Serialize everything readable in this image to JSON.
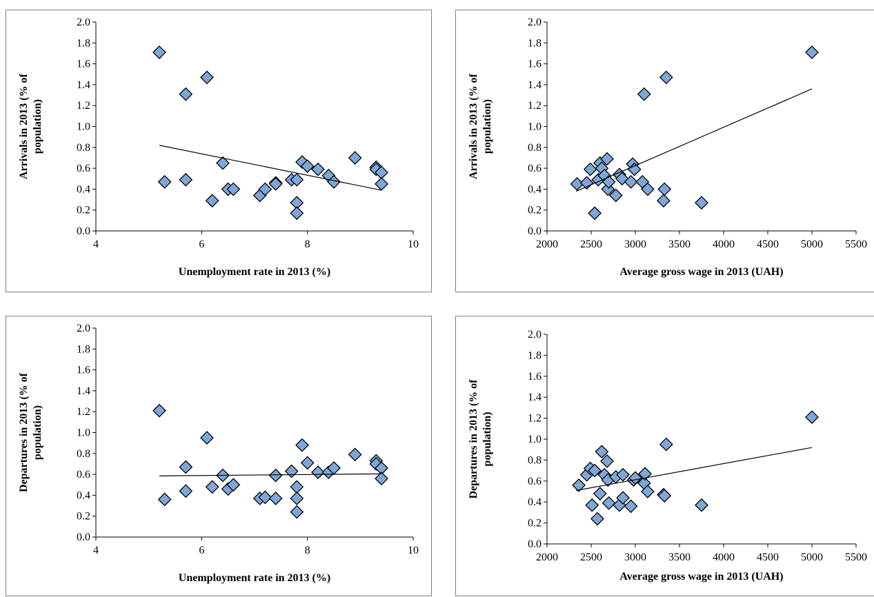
{
  "chart_data": [
    {
      "type": "scatter",
      "xlabel": "Unemployment rate in 2013 (%)",
      "ylabel": [
        "Arrivals in 2013  (% of",
        "population)"
      ],
      "xlim": [
        4,
        10
      ],
      "ylim": [
        0,
        2.0
      ],
      "xticks": [
        "4",
        "6",
        "8",
        "10"
      ],
      "yticks": [
        "0.0",
        "0.2",
        "0.4",
        "0.6",
        "0.8",
        "1.0",
        "1.2",
        "1.4",
        "1.6",
        "1.8",
        "2.0"
      ],
      "trendline": [
        [
          5.2,
          0.82
        ],
        [
          9.4,
          0.39
        ]
      ],
      "points": [
        [
          5.2,
          1.71
        ],
        [
          5.3,
          0.47
        ],
        [
          5.7,
          1.31
        ],
        [
          5.7,
          0.49
        ],
        [
          6.1,
          1.47
        ],
        [
          6.2,
          0.29
        ],
        [
          6.4,
          0.65
        ],
        [
          6.5,
          0.4
        ],
        [
          6.6,
          0.4
        ],
        [
          7.1,
          0.34
        ],
        [
          7.2,
          0.4
        ],
        [
          7.4,
          0.46
        ],
        [
          7.4,
          0.45
        ],
        [
          7.7,
          0.49
        ],
        [
          7.8,
          0.49
        ],
        [
          7.8,
          0.27
        ],
        [
          7.8,
          0.17
        ],
        [
          7.9,
          0.66
        ],
        [
          8.0,
          0.62
        ],
        [
          8.2,
          0.59
        ],
        [
          8.4,
          0.53
        ],
        [
          8.5,
          0.47
        ],
        [
          8.9,
          0.7
        ],
        [
          9.3,
          0.61
        ],
        [
          9.3,
          0.59
        ],
        [
          9.4,
          0.56
        ],
        [
          9.4,
          0.45
        ]
      ]
    },
    {
      "type": "scatter",
      "xlabel": "Average gross wage in 2013 (UAH)",
      "ylabel": [
        "Arrivals in 2013  (% of",
        "population)"
      ],
      "xlim": [
        2000,
        5500
      ],
      "ylim": [
        0,
        2.0
      ],
      "xticks": [
        "2000",
        "2500",
        "3000",
        "3500",
        "4000",
        "4500",
        "5000",
        "5500"
      ],
      "yticks": [
        "0.0",
        "0.2",
        "0.4",
        "0.6",
        "0.8",
        "1.0",
        "1.2",
        "1.4",
        "1.6",
        "1.8",
        "2.0"
      ],
      "trendline": [
        [
          2330,
          0.38
        ],
        [
          5000,
          1.36
        ]
      ],
      "points": [
        [
          2340,
          0.45
        ],
        [
          2450,
          0.46
        ],
        [
          2490,
          0.59
        ],
        [
          2540,
          0.17
        ],
        [
          2580,
          0.49
        ],
        [
          2600,
          0.65
        ],
        [
          2620,
          0.6
        ],
        [
          2650,
          0.53
        ],
        [
          2680,
          0.69
        ],
        [
          2690,
          0.4
        ],
        [
          2700,
          0.47
        ],
        [
          2780,
          0.34
        ],
        [
          2820,
          0.54
        ],
        [
          2850,
          0.5
        ],
        [
          2950,
          0.47
        ],
        [
          2970,
          0.64
        ],
        [
          2990,
          0.59
        ],
        [
          3080,
          0.47
        ],
        [
          3100,
          1.31
        ],
        [
          3140,
          0.4
        ],
        [
          3330,
          0.4
        ],
        [
          3320,
          0.29
        ],
        [
          3350,
          1.47
        ],
        [
          3750,
          0.27
        ],
        [
          5000,
          1.71
        ]
      ]
    },
    {
      "type": "scatter",
      "xlabel": "Unemployment rate in 2013 (%)",
      "ylabel": [
        "Departures in 2013  (% of",
        "population)"
      ],
      "xlim": [
        4,
        10
      ],
      "ylim": [
        0,
        2.0
      ],
      "xticks": [
        "4",
        "6",
        "8",
        "10"
      ],
      "yticks": [
        "0.0",
        "0.2",
        "0.4",
        "0.6",
        "0.8",
        "1.0",
        "1.2",
        "1.4",
        "1.6",
        "1.8",
        "2.0"
      ],
      "trendline": [
        [
          5.2,
          0.585
        ],
        [
          9.4,
          0.605
        ]
      ],
      "points": [
        [
          5.2,
          1.21
        ],
        [
          5.3,
          0.36
        ],
        [
          5.7,
          0.67
        ],
        [
          5.7,
          0.44
        ],
        [
          6.1,
          0.95
        ],
        [
          6.2,
          0.48
        ],
        [
          6.4,
          0.59
        ],
        [
          6.5,
          0.46
        ],
        [
          6.6,
          0.5
        ],
        [
          7.1,
          0.37
        ],
        [
          7.2,
          0.38
        ],
        [
          7.4,
          0.59
        ],
        [
          7.4,
          0.37
        ],
        [
          7.7,
          0.63
        ],
        [
          7.8,
          0.48
        ],
        [
          7.8,
          0.37
        ],
        [
          7.8,
          0.24
        ],
        [
          7.9,
          0.88
        ],
        [
          8.0,
          0.71
        ],
        [
          8.2,
          0.62
        ],
        [
          8.4,
          0.62
        ],
        [
          8.5,
          0.66
        ],
        [
          8.9,
          0.79
        ],
        [
          9.3,
          0.73
        ],
        [
          9.3,
          0.7
        ],
        [
          9.4,
          0.66
        ],
        [
          9.4,
          0.56
        ]
      ]
    },
    {
      "type": "scatter",
      "xlabel": "Average gross wage in 2013 (UAH)",
      "ylabel": [
        "Departures in 2013  (% of",
        "population)"
      ],
      "xlim": [
        2000,
        5500
      ],
      "ylim": [
        0,
        2.0
      ],
      "xticks": [
        "2000",
        "2500",
        "3000",
        "3500",
        "4000",
        "4500",
        "5000",
        "5500"
      ],
      "yticks": [
        "0.0",
        "0.2",
        "0.4",
        "0.6",
        "0.8",
        "1.0",
        "1.2",
        "1.4",
        "1.6",
        "1.8",
        "2.0"
      ],
      "trendline": [
        [
          2330,
          0.51
        ],
        [
          5000,
          0.92
        ]
      ],
      "points": [
        [
          2360,
          0.56
        ],
        [
          2450,
          0.66
        ],
        [
          2490,
          0.72
        ],
        [
          2510,
          0.37
        ],
        [
          2540,
          0.7
        ],
        [
          2570,
          0.24
        ],
        [
          2600,
          0.48
        ],
        [
          2620,
          0.88
        ],
        [
          2650,
          0.66
        ],
        [
          2680,
          0.79
        ],
        [
          2690,
          0.61
        ],
        [
          2700,
          0.39
        ],
        [
          2780,
          0.64
        ],
        [
          2820,
          0.37
        ],
        [
          2860,
          0.66
        ],
        [
          2860,
          0.44
        ],
        [
          2950,
          0.36
        ],
        [
          2980,
          0.61
        ],
        [
          3000,
          0.63
        ],
        [
          3100,
          0.58
        ],
        [
          3110,
          0.67
        ],
        [
          3140,
          0.5
        ],
        [
          3320,
          0.47
        ],
        [
          3330,
          0.46
        ],
        [
          3350,
          0.95
        ],
        [
          3750,
          0.37
        ],
        [
          5000,
          1.21
        ]
      ]
    }
  ],
  "colors": {
    "marker_fill": "#7ea7d8",
    "marker_stroke": "#000000",
    "trendline": "#000000",
    "panel_border": "#7f7f7f"
  }
}
